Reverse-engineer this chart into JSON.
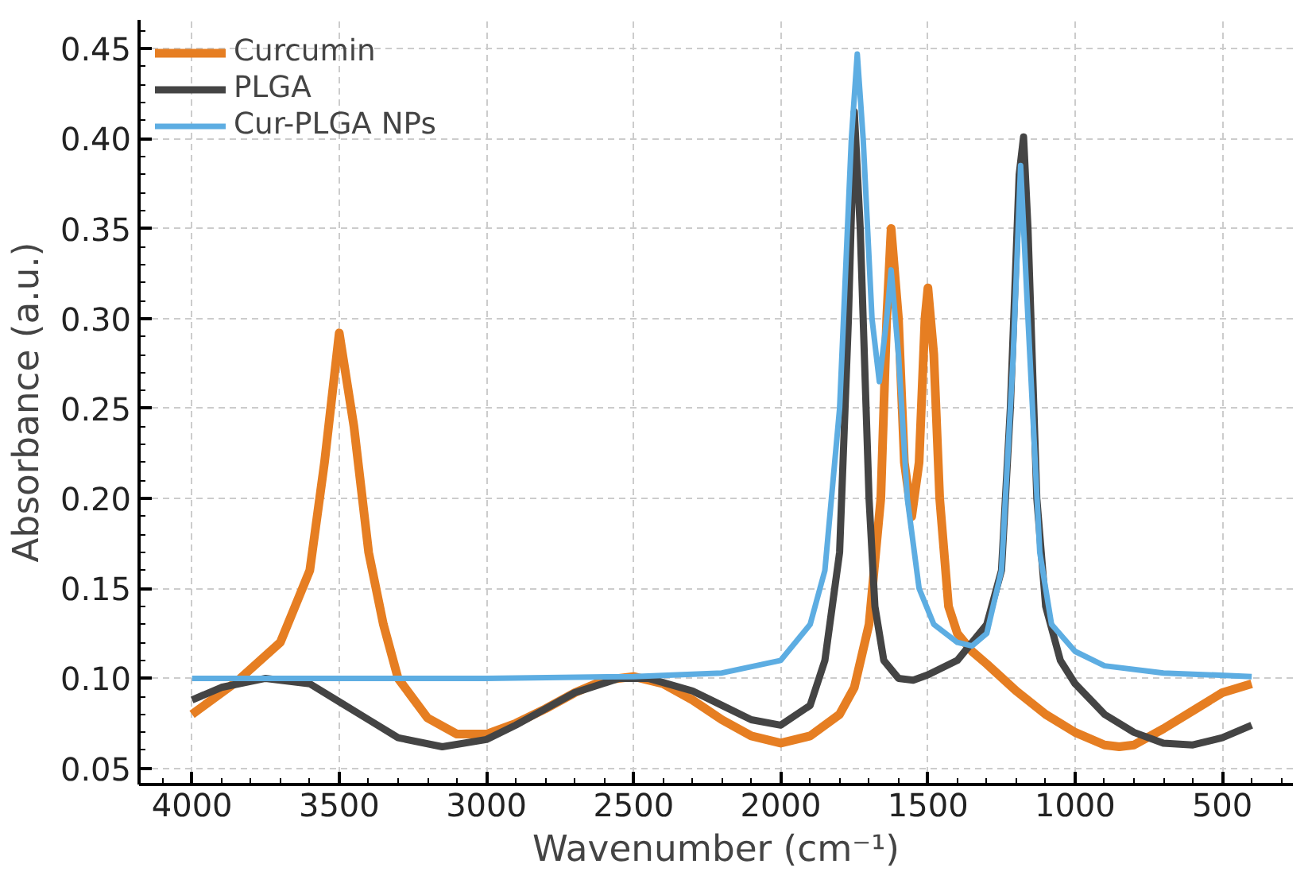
{
  "chart_data": {
    "type": "line",
    "xlabel": "Wavenumber (cm⁻¹)",
    "ylabel": "Absorbance (a.u.)",
    "xlim": [
      4180,
      260
    ],
    "ylim": [
      0.041,
      0.466
    ],
    "xticks": [
      4000,
      3500,
      3000,
      2500,
      2000,
      1500,
      1000,
      500
    ],
    "yticks": [
      {
        "value": 0.05,
        "label": "0.05"
      },
      {
        "value": 0.1,
        "label": "0.10"
      },
      {
        "value": 0.15,
        "label": "0.15"
      },
      {
        "value": 0.2,
        "label": "0.20"
      },
      {
        "value": 0.25,
        "label": "0.25"
      },
      {
        "value": 0.3,
        "label": "0.30"
      },
      {
        "value": 0.35,
        "label": "0.35"
      },
      {
        "value": 0.4,
        "label": "0.40"
      },
      {
        "value": 0.45,
        "label": "0.45"
      }
    ],
    "grid": true,
    "legend": "top left",
    "line_style": "solid",
    "series": [
      {
        "name": "Curcumin",
        "color": "#e67e22",
        "x": [
          4000,
          3850,
          3700,
          3600,
          3550,
          3500,
          3450,
          3400,
          3350,
          3300,
          3200,
          3100,
          3000,
          2900,
          2800,
          2700,
          2600,
          2500,
          2400,
          2300,
          2200,
          2100,
          2000,
          1900,
          1800,
          1750,
          1700,
          1660,
          1640,
          1625,
          1600,
          1580,
          1555,
          1530,
          1510,
          1500,
          1480,
          1460,
          1430,
          1400,
          1350,
          1300,
          1200,
          1100,
          1000,
          900,
          850,
          800,
          700,
          600,
          500,
          400
        ],
        "values": [
          0.08,
          0.098,
          0.12,
          0.16,
          0.22,
          0.292,
          0.24,
          0.17,
          0.13,
          0.1,
          0.078,
          0.069,
          0.069,
          0.075,
          0.083,
          0.092,
          0.099,
          0.101,
          0.097,
          0.088,
          0.077,
          0.068,
          0.064,
          0.068,
          0.08,
          0.095,
          0.13,
          0.2,
          0.3,
          0.35,
          0.3,
          0.22,
          0.19,
          0.22,
          0.3,
          0.317,
          0.28,
          0.2,
          0.14,
          0.125,
          0.115,
          0.108,
          0.093,
          0.08,
          0.07,
          0.063,
          0.062,
          0.063,
          0.072,
          0.082,
          0.092,
          0.097
        ]
      },
      {
        "name": "PLGA",
        "color": "#444444",
        "x": [
          4000,
          3900,
          3750,
          3600,
          3500,
          3400,
          3300,
          3150,
          3000,
          2900,
          2800,
          2700,
          2550,
          2450,
          2300,
          2200,
          2100,
          2000,
          1900,
          1850,
          1800,
          1770,
          1750,
          1730,
          1700,
          1680,
          1650,
          1600,
          1550,
          1500,
          1400,
          1300,
          1250,
          1220,
          1190,
          1175,
          1160,
          1130,
          1100,
          1050,
          1000,
          900,
          800,
          700,
          600,
          500,
          400
        ],
        "values": [
          0.088,
          0.095,
          0.1,
          0.097,
          0.087,
          0.077,
          0.067,
          0.062,
          0.066,
          0.074,
          0.083,
          0.092,
          0.1,
          0.1,
          0.093,
          0.085,
          0.077,
          0.074,
          0.085,
          0.11,
          0.17,
          0.3,
          0.415,
          0.35,
          0.2,
          0.14,
          0.11,
          0.1,
          0.099,
          0.102,
          0.11,
          0.13,
          0.16,
          0.25,
          0.38,
          0.401,
          0.35,
          0.2,
          0.14,
          0.11,
          0.097,
          0.08,
          0.07,
          0.064,
          0.063,
          0.067,
          0.074
        ]
      },
      {
        "name": "Cur-PLGA NPs",
        "color": "#5dade2",
        "x": [
          4000,
          3500,
          3000,
          2500,
          2200,
          2000,
          1900,
          1850,
          1800,
          1760,
          1740,
          1720,
          1690,
          1665,
          1640,
          1625,
          1600,
          1570,
          1530,
          1480,
          1400,
          1350,
          1300,
          1250,
          1210,
          1185,
          1160,
          1120,
          1080,
          1000,
          900,
          700,
          400
        ],
        "values": [
          0.1,
          0.1,
          0.1,
          0.101,
          0.103,
          0.11,
          0.13,
          0.16,
          0.25,
          0.4,
          0.447,
          0.4,
          0.3,
          0.265,
          0.3,
          0.327,
          0.28,
          0.2,
          0.15,
          0.13,
          0.12,
          0.118,
          0.125,
          0.16,
          0.28,
          0.385,
          0.3,
          0.17,
          0.13,
          0.115,
          0.107,
          0.103,
          0.101
        ]
      }
    ]
  }
}
